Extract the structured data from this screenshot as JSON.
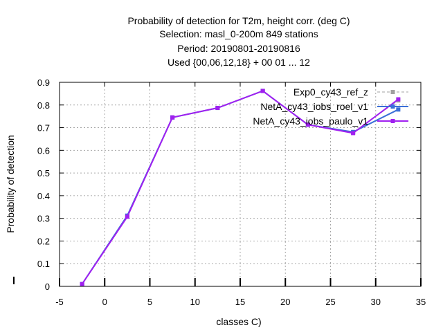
{
  "chart_data": {
    "type": "line",
    "title_lines": [
      "Probability of detection  for T2m, height corr. (deg C)",
      "Selection: masl_0-200m    849 stations",
      "Period: 20190801-20190816",
      "Used {00,06,12,18} + 00 01 ... 12"
    ],
    "xlabel": "classes C)",
    "ylabel": "Probability of detection",
    "xlim": [
      -5,
      35
    ],
    "ylim": [
      0,
      0.9
    ],
    "xticks": [
      -5,
      0,
      5,
      10,
      15,
      20,
      25,
      30,
      35
    ],
    "yticks": [
      0,
      0.1,
      0.2,
      0.3,
      0.4,
      0.5,
      0.6,
      0.7,
      0.8,
      0.9
    ],
    "xtick_labels": [
      "-5",
      "0",
      "5",
      "10",
      "15",
      "20",
      "25",
      "30",
      "35"
    ],
    "ytick_labels": [
      "0",
      "0.1",
      "0.2",
      "0.3",
      "0.4",
      "0.5",
      "0.6",
      "0.7",
      "0.8",
      "0.9"
    ],
    "grid": true,
    "legend_position": "top-right",
    "series": [
      {
        "name": "Exp0_cy43_ref_z",
        "color": "#a0a0a0",
        "dashed": true,
        "x": [
          -2.5,
          2.5,
          7.5,
          12.5,
          17.5,
          22.5,
          27.5,
          32.5
        ],
        "values": [
          0.01,
          0.31,
          0.745,
          0.787,
          0.862,
          0.713,
          0.678,
          0.82
        ]
      },
      {
        "name": "NetA_cy43_iobs_roel_v1",
        "color": "#3a6fd8",
        "dashed": false,
        "x": [
          -2.5,
          2.5,
          7.5,
          12.5,
          17.5,
          22.5,
          27.5,
          32.5
        ],
        "values": [
          0.01,
          0.312,
          0.745,
          0.787,
          0.862,
          0.713,
          0.681,
          0.78
        ]
      },
      {
        "name": "NetA_cy43_iobs_paulo_v1",
        "color": "#a020f0",
        "dashed": false,
        "x": [
          -2.5,
          2.5,
          7.5,
          12.5,
          17.5,
          22.5,
          27.5,
          32.5
        ],
        "values": [
          0.01,
          0.307,
          0.745,
          0.787,
          0.862,
          0.713,
          0.676,
          0.825
        ]
      }
    ]
  }
}
